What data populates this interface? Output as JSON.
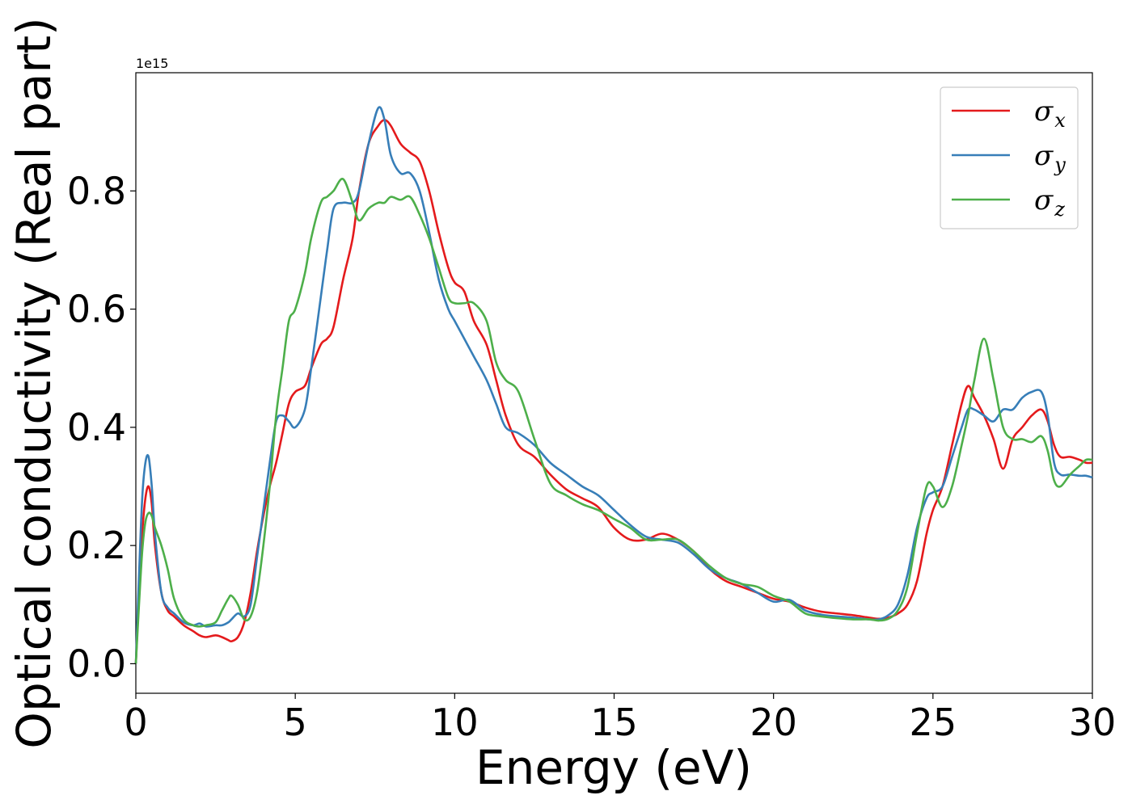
{
  "chart_data": {
    "type": "line",
    "xlabel": "Energy (eV)",
    "ylabel": "Optical conductivity (Real part)",
    "xlim": [
      0,
      30
    ],
    "ylim": [
      -0.05,
      1.0
    ],
    "y_scale_label": "1e15",
    "x_ticks": [
      0,
      5,
      10,
      15,
      20,
      25,
      30
    ],
    "x_tick_labels": [
      "0",
      "5",
      "10",
      "15",
      "20",
      "25",
      "30"
    ],
    "y_ticks": [
      0.0,
      0.2,
      0.4,
      0.6,
      0.8
    ],
    "y_tick_labels": [
      "0.0",
      "0.2",
      "0.4",
      "0.6",
      "0.8"
    ],
    "grid": false,
    "legend_position": "top-right",
    "series": [
      {
        "name": "σx",
        "symbol": "σ",
        "subscript": "x",
        "color": "#e41a1c",
        "x": [
          0,
          0.1,
          0.2,
          0.3,
          0.4,
          0.5,
          0.6,
          0.8,
          1.0,
          1.2,
          1.5,
          1.8,
          2.0,
          2.2,
          2.5,
          2.7,
          2.9,
          3.0,
          3.2,
          3.4,
          3.6,
          3.8,
          4.0,
          4.2,
          4.4,
          4.6,
          4.8,
          5.0,
          5.3,
          5.5,
          5.8,
          6.0,
          6.2,
          6.5,
          6.8,
          7.0,
          7.3,
          7.6,
          7.8,
          8.0,
          8.3,
          8.6,
          8.9,
          9.2,
          9.5,
          9.8,
          10.0,
          10.3,
          10.6,
          11.0,
          11.3,
          11.6,
          12.0,
          12.5,
          13.0,
          13.5,
          14.0,
          14.5,
          15.0,
          15.5,
          16.0,
          16.5,
          17.0,
          17.5,
          18.0,
          18.5,
          19.0,
          19.5,
          20.0,
          20.5,
          21.0,
          21.5,
          22.0,
          22.5,
          23.0,
          23.3,
          23.6,
          23.9,
          24.2,
          24.5,
          24.8,
          25.0,
          25.3,
          25.6,
          25.9,
          26.1,
          26.3,
          26.6,
          26.9,
          27.2,
          27.5,
          27.8,
          28.1,
          28.4,
          28.6,
          28.8,
          29.0,
          29.3,
          29.6,
          29.8,
          30.0
        ],
        "y": [
          0.0,
          0.12,
          0.22,
          0.28,
          0.3,
          0.27,
          0.2,
          0.12,
          0.09,
          0.08,
          0.065,
          0.055,
          0.048,
          0.045,
          0.048,
          0.045,
          0.04,
          0.038,
          0.045,
          0.07,
          0.12,
          0.19,
          0.25,
          0.3,
          0.34,
          0.39,
          0.44,
          0.46,
          0.47,
          0.5,
          0.54,
          0.55,
          0.57,
          0.65,
          0.72,
          0.8,
          0.88,
          0.91,
          0.92,
          0.91,
          0.88,
          0.865,
          0.85,
          0.8,
          0.73,
          0.67,
          0.645,
          0.63,
          0.58,
          0.54,
          0.48,
          0.42,
          0.37,
          0.35,
          0.32,
          0.295,
          0.28,
          0.265,
          0.23,
          0.21,
          0.21,
          0.22,
          0.21,
          0.19,
          0.16,
          0.14,
          0.13,
          0.12,
          0.11,
          0.105,
          0.095,
          0.088,
          0.085,
          0.082,
          0.078,
          0.076,
          0.078,
          0.085,
          0.1,
          0.14,
          0.22,
          0.26,
          0.3,
          0.37,
          0.44,
          0.47,
          0.45,
          0.42,
          0.38,
          0.33,
          0.38,
          0.4,
          0.42,
          0.43,
          0.41,
          0.37,
          0.35,
          0.35,
          0.345,
          0.34,
          0.34
        ]
      },
      {
        "name": "σy",
        "symbol": "σ",
        "subscript": "y",
        "color": "#377eb8",
        "x": [
          0,
          0.1,
          0.2,
          0.3,
          0.4,
          0.5,
          0.6,
          0.8,
          1.0,
          1.2,
          1.5,
          1.8,
          2.0,
          2.2,
          2.5,
          2.7,
          2.9,
          3.0,
          3.2,
          3.4,
          3.6,
          3.8,
          4.0,
          4.2,
          4.4,
          4.6,
          4.8,
          5.0,
          5.3,
          5.5,
          5.8,
          6.0,
          6.2,
          6.5,
          6.8,
          7.0,
          7.3,
          7.6,
          7.8,
          8.0,
          8.3,
          8.6,
          8.9,
          9.2,
          9.5,
          9.8,
          10.0,
          10.3,
          10.6,
          11.0,
          11.3,
          11.6,
          12.0,
          12.5,
          13.0,
          13.5,
          14.0,
          14.5,
          15.0,
          15.5,
          16.0,
          16.5,
          17.0,
          17.5,
          18.0,
          18.5,
          19.0,
          19.5,
          20.0,
          20.5,
          21.0,
          21.5,
          22.0,
          22.5,
          23.0,
          23.3,
          23.6,
          23.9,
          24.2,
          24.5,
          24.8,
          25.0,
          25.3,
          25.6,
          25.9,
          26.1,
          26.3,
          26.6,
          26.9,
          27.2,
          27.5,
          27.8,
          28.1,
          28.4,
          28.6,
          28.8,
          29.0,
          29.3,
          29.6,
          29.8,
          30.0
        ],
        "y": [
          0.0,
          0.15,
          0.28,
          0.34,
          0.35,
          0.3,
          0.22,
          0.12,
          0.095,
          0.085,
          0.07,
          0.065,
          0.068,
          0.063,
          0.065,
          0.065,
          0.07,
          0.075,
          0.085,
          0.08,
          0.1,
          0.18,
          0.26,
          0.34,
          0.41,
          0.42,
          0.41,
          0.4,
          0.43,
          0.5,
          0.62,
          0.7,
          0.77,
          0.78,
          0.78,
          0.8,
          0.88,
          0.94,
          0.92,
          0.86,
          0.83,
          0.83,
          0.8,
          0.73,
          0.65,
          0.6,
          0.58,
          0.55,
          0.52,
          0.48,
          0.44,
          0.4,
          0.39,
          0.37,
          0.34,
          0.32,
          0.3,
          0.285,
          0.26,
          0.235,
          0.215,
          0.21,
          0.205,
          0.185,
          0.16,
          0.145,
          0.135,
          0.12,
          0.105,
          0.108,
          0.09,
          0.083,
          0.08,
          0.078,
          0.075,
          0.075,
          0.082,
          0.1,
          0.15,
          0.23,
          0.28,
          0.29,
          0.3,
          0.35,
          0.4,
          0.43,
          0.43,
          0.42,
          0.41,
          0.43,
          0.43,
          0.45,
          0.46,
          0.46,
          0.42,
          0.34,
          0.32,
          0.32,
          0.318,
          0.318,
          0.315
        ]
      },
      {
        "name": "σz",
        "symbol": "σ",
        "subscript": "z",
        "color": "#4daf4a",
        "x": [
          0,
          0.1,
          0.2,
          0.3,
          0.4,
          0.5,
          0.6,
          0.8,
          1.0,
          1.2,
          1.5,
          1.8,
          2.0,
          2.2,
          2.5,
          2.7,
          2.9,
          3.0,
          3.2,
          3.4,
          3.6,
          3.8,
          4.0,
          4.2,
          4.4,
          4.6,
          4.8,
          5.0,
          5.3,
          5.5,
          5.8,
          6.0,
          6.2,
          6.5,
          6.8,
          7.0,
          7.3,
          7.6,
          7.8,
          8.0,
          8.3,
          8.6,
          8.9,
          9.2,
          9.5,
          9.8,
          10.0,
          10.3,
          10.6,
          11.0,
          11.3,
          11.6,
          12.0,
          12.5,
          13.0,
          13.5,
          14.0,
          14.5,
          15.0,
          15.5,
          16.0,
          16.5,
          17.0,
          17.5,
          18.0,
          18.5,
          19.0,
          19.5,
          20.0,
          20.5,
          21.0,
          21.5,
          22.0,
          22.5,
          23.0,
          23.3,
          23.6,
          23.9,
          24.2,
          24.5,
          24.8,
          25.0,
          25.3,
          25.6,
          25.9,
          26.1,
          26.3,
          26.6,
          26.9,
          27.2,
          27.5,
          27.8,
          28.1,
          28.4,
          28.6,
          28.8,
          29.0,
          29.3,
          29.6,
          29.8,
          30.0
        ],
        "y": [
          0.0,
          0.1,
          0.19,
          0.24,
          0.255,
          0.25,
          0.23,
          0.2,
          0.16,
          0.11,
          0.075,
          0.065,
          0.063,
          0.065,
          0.07,
          0.09,
          0.11,
          0.115,
          0.1,
          0.075,
          0.08,
          0.12,
          0.2,
          0.3,
          0.42,
          0.5,
          0.58,
          0.6,
          0.66,
          0.72,
          0.78,
          0.79,
          0.8,
          0.82,
          0.78,
          0.75,
          0.77,
          0.78,
          0.78,
          0.79,
          0.785,
          0.79,
          0.76,
          0.72,
          0.67,
          0.62,
          0.61,
          0.61,
          0.61,
          0.58,
          0.51,
          0.48,
          0.46,
          0.38,
          0.305,
          0.285,
          0.27,
          0.26,
          0.245,
          0.23,
          0.21,
          0.21,
          0.21,
          0.19,
          0.165,
          0.145,
          0.135,
          0.13,
          0.115,
          0.105,
          0.085,
          0.08,
          0.077,
          0.075,
          0.075,
          0.073,
          0.076,
          0.09,
          0.13,
          0.22,
          0.3,
          0.3,
          0.265,
          0.3,
          0.37,
          0.42,
          0.48,
          0.55,
          0.48,
          0.4,
          0.38,
          0.38,
          0.375,
          0.385,
          0.36,
          0.31,
          0.3,
          0.32,
          0.335,
          0.345,
          0.345
        ]
      }
    ]
  }
}
